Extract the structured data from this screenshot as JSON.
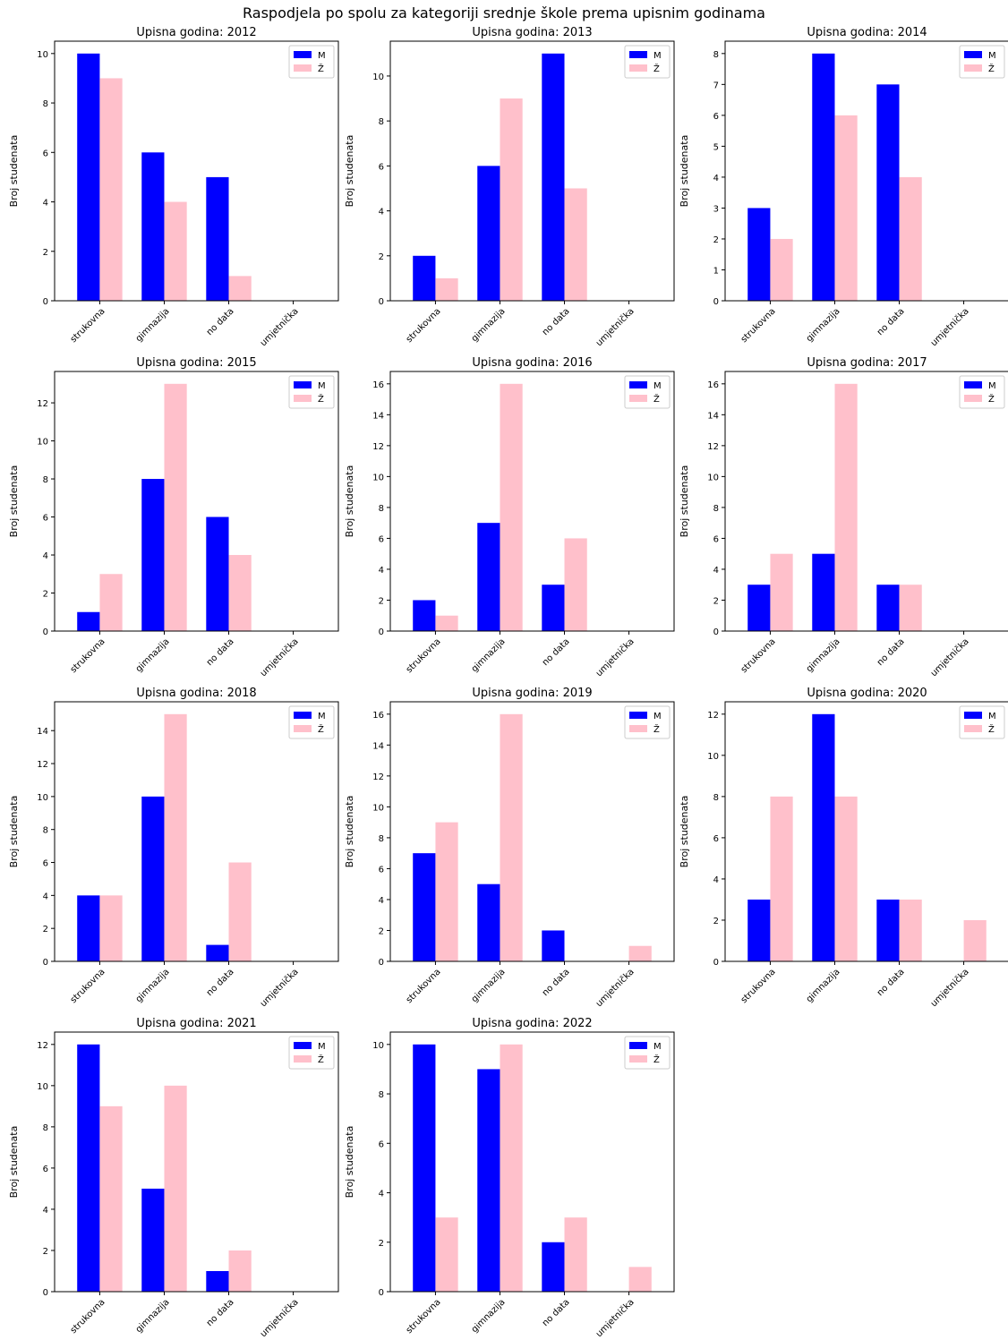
{
  "figure": {
    "title": "Raspodjela po spolu za kategoriji srednje škole prema upisnim godinama"
  },
  "colors": {
    "M": "#0000ff",
    "Z": "#ffc0cb",
    "axis": "#000000"
  },
  "chart_data": [
    {
      "type": "bar",
      "title": "Upisna godina: 2012",
      "ylabel": "Broj studenata",
      "categories": [
        "strukovna",
        "gimnazija",
        "no data",
        "umjetnička"
      ],
      "ylim": [
        0,
        10.5
      ],
      "yticks": [
        0,
        2,
        4,
        6,
        8,
        10
      ],
      "legend": "top-right",
      "grid": false,
      "series": [
        {
          "name": "M",
          "values": [
            10,
            6,
            5,
            0
          ]
        },
        {
          "name": "Ž",
          "values": [
            9,
            4,
            1,
            0
          ]
        }
      ]
    },
    {
      "type": "bar",
      "title": "Upisna godina: 2013",
      "ylabel": "Broj studenata",
      "categories": [
        "strukovna",
        "gimnazija",
        "no data",
        "umjetnička"
      ],
      "ylim": [
        0,
        11.55
      ],
      "yticks": [
        0,
        2,
        4,
        6,
        8,
        10
      ],
      "legend": "top-right",
      "grid": false,
      "series": [
        {
          "name": "M",
          "values": [
            2,
            6,
            11,
            0
          ]
        },
        {
          "name": "Ž",
          "values": [
            1,
            9,
            5,
            0
          ]
        }
      ]
    },
    {
      "type": "bar",
      "title": "Upisna godina: 2014",
      "ylabel": "Broj studenata",
      "categories": [
        "strukovna",
        "gimnazija",
        "no data",
        "umjetnička"
      ],
      "ylim": [
        0,
        8.4
      ],
      "yticks": [
        0,
        1,
        2,
        3,
        4,
        5,
        6,
        7,
        8
      ],
      "legend": "top-right",
      "grid": false,
      "series": [
        {
          "name": "M",
          "values": [
            3,
            8,
            7,
            0
          ]
        },
        {
          "name": "Ž",
          "values": [
            2,
            6,
            4,
            0
          ]
        }
      ]
    },
    {
      "type": "bar",
      "title": "Upisna godina: 2015",
      "ylabel": "Broj studenata",
      "categories": [
        "strukovna",
        "gimnazija",
        "no data",
        "umjetnička"
      ],
      "ylim": [
        0,
        13.65
      ],
      "yticks": [
        0,
        2,
        4,
        6,
        8,
        10,
        12
      ],
      "legend": "top-right",
      "grid": false,
      "series": [
        {
          "name": "M",
          "values": [
            1,
            8,
            6,
            0
          ]
        },
        {
          "name": "Ž",
          "values": [
            3,
            13,
            4,
            0
          ]
        }
      ]
    },
    {
      "type": "bar",
      "title": "Upisna godina: 2016",
      "ylabel": "Broj studenata",
      "categories": [
        "strukovna",
        "gimnazija",
        "no data",
        "umjetnička"
      ],
      "ylim": [
        0,
        16.8
      ],
      "yticks": [
        0,
        2,
        4,
        6,
        8,
        10,
        12,
        14,
        16
      ],
      "legend": "top-right",
      "grid": false,
      "series": [
        {
          "name": "M",
          "values": [
            2,
            7,
            3,
            0
          ]
        },
        {
          "name": "Ž",
          "values": [
            1,
            16,
            6,
            0
          ]
        }
      ]
    },
    {
      "type": "bar",
      "title": "Upisna godina: 2017",
      "ylabel": "Broj studenata",
      "categories": [
        "strukovna",
        "gimnazija",
        "no data",
        "umjetnička"
      ],
      "ylim": [
        0,
        16.8
      ],
      "yticks": [
        0,
        2,
        4,
        6,
        8,
        10,
        12,
        14,
        16
      ],
      "legend": "top-right",
      "grid": false,
      "series": [
        {
          "name": "M",
          "values": [
            3,
            5,
            3,
            0
          ]
        },
        {
          "name": "Ž",
          "values": [
            5,
            16,
            3,
            0
          ]
        }
      ]
    },
    {
      "type": "bar",
      "title": "Upisna godina: 2018",
      "ylabel": "Broj studenata",
      "categories": [
        "strukovna",
        "gimnazija",
        "no data",
        "umjetnička"
      ],
      "ylim": [
        0,
        15.75
      ],
      "yticks": [
        0,
        2,
        4,
        6,
        8,
        10,
        12,
        14
      ],
      "legend": "top-right",
      "grid": false,
      "series": [
        {
          "name": "M",
          "values": [
            4,
            10,
            1,
            0
          ]
        },
        {
          "name": "Ž",
          "values": [
            4,
            15,
            6,
            0
          ]
        }
      ]
    },
    {
      "type": "bar",
      "title": "Upisna godina: 2019",
      "ylabel": "Broj studenata",
      "categories": [
        "strukovna",
        "gimnazija",
        "no data",
        "umjetnička"
      ],
      "ylim": [
        0,
        16.8
      ],
      "yticks": [
        0,
        2,
        4,
        6,
        8,
        10,
        12,
        14,
        16
      ],
      "legend": "top-right",
      "grid": false,
      "series": [
        {
          "name": "M",
          "values": [
            7,
            5,
            2,
            0
          ]
        },
        {
          "name": "Ž",
          "values": [
            9,
            16,
            0,
            1
          ]
        }
      ]
    },
    {
      "type": "bar",
      "title": "Upisna godina: 2020",
      "ylabel": "Broj studenata",
      "categories": [
        "strukovna",
        "gimnazija",
        "no data",
        "umjetnička"
      ],
      "ylim": [
        0,
        12.6
      ],
      "yticks": [
        0,
        2,
        4,
        6,
        8,
        10,
        12
      ],
      "legend": "top-right",
      "grid": false,
      "series": [
        {
          "name": "M",
          "values": [
            3,
            12,
            3,
            0
          ]
        },
        {
          "name": "Ž",
          "values": [
            8,
            8,
            3,
            2
          ]
        }
      ]
    },
    {
      "type": "bar",
      "title": "Upisna godina: 2021",
      "ylabel": "Broj studenata",
      "categories": [
        "strukovna",
        "gimnazija",
        "no data",
        "umjetnička"
      ],
      "ylim": [
        0,
        12.6
      ],
      "yticks": [
        0,
        2,
        4,
        6,
        8,
        10,
        12
      ],
      "legend": "top-right",
      "grid": false,
      "series": [
        {
          "name": "M",
          "values": [
            12,
            5,
            1,
            0
          ]
        },
        {
          "name": "Ž",
          "values": [
            9,
            10,
            2,
            0
          ]
        }
      ]
    },
    {
      "type": "bar",
      "title": "Upisna godina: 2022",
      "ylabel": "Broj studenata",
      "categories": [
        "strukovna",
        "gimnazija",
        "no data",
        "umjetnička"
      ],
      "ylim": [
        0,
        10.5
      ],
      "yticks": [
        0,
        2,
        4,
        6,
        8,
        10
      ],
      "legend": "top-right",
      "grid": false,
      "series": [
        {
          "name": "M",
          "values": [
            10,
            9,
            2,
            0
          ]
        },
        {
          "name": "Ž",
          "values": [
            3,
            10,
            3,
            1
          ]
        }
      ]
    }
  ]
}
